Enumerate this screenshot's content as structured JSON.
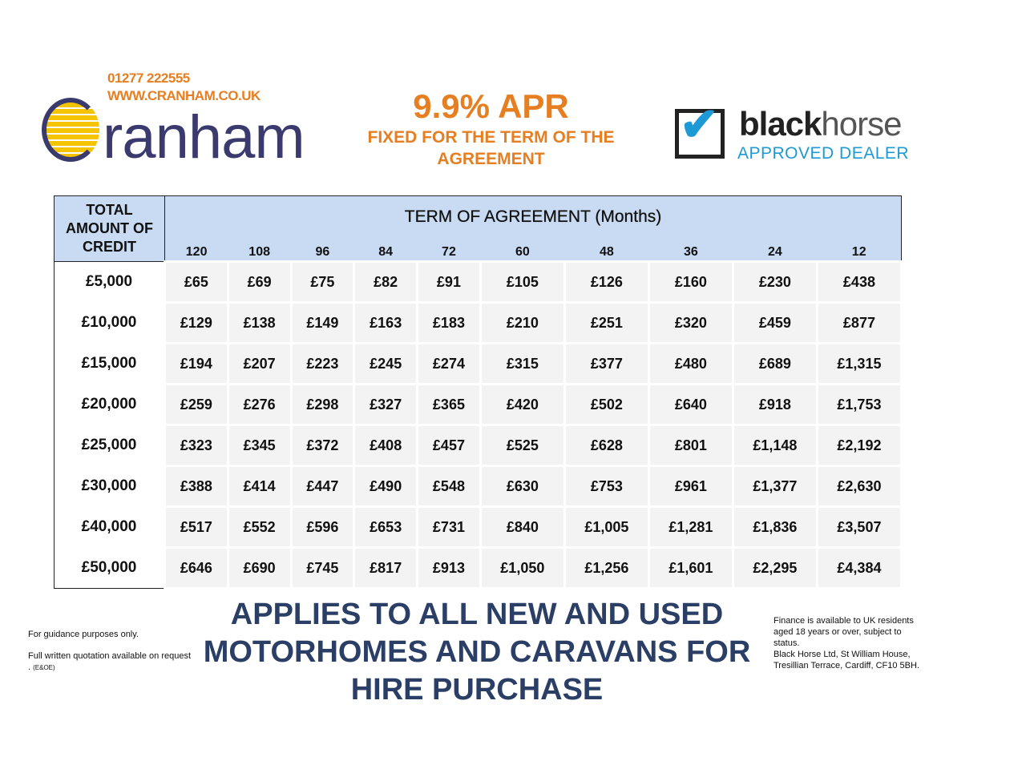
{
  "contact": {
    "phone": "01277 222555",
    "website": "WWW.CRANHAM.CO.UK"
  },
  "logo": {
    "brand": "Cranham",
    "brand_tail": "ranham"
  },
  "offer": {
    "apr": "9.9% APR",
    "subtitle": "FIXED FOR THE TERM OF THE AGREEMENT"
  },
  "dealer": {
    "name_bold": "black",
    "name_light": "horse",
    "tagline": "APPROVED DEALER"
  },
  "table": {
    "corner_header": "TOTAL AMOUNT OF CREDIT",
    "term_header": "TERM OF AGREEMENT (Months)",
    "months": [
      "120",
      "108",
      "96",
      "84",
      "72",
      "60",
      "48",
      "36",
      "24",
      "12"
    ],
    "rows": [
      {
        "amount": "£5,000",
        "payments": [
          "£65",
          "£69",
          "£75",
          "£82",
          "£91",
          "£105",
          "£126",
          "£160",
          "£230",
          "£438"
        ]
      },
      {
        "amount": "£10,000",
        "payments": [
          "£129",
          "£138",
          "£149",
          "£163",
          "£183",
          "£210",
          "£251",
          "£320",
          "£459",
          "£877"
        ]
      },
      {
        "amount": "£15,000",
        "payments": [
          "£194",
          "£207",
          "£223",
          "£245",
          "£274",
          "£315",
          "£377",
          "£480",
          "£689",
          "£1,315"
        ]
      },
      {
        "amount": "£20,000",
        "payments": [
          "£259",
          "£276",
          "£298",
          "£327",
          "£365",
          "£420",
          "£502",
          "£640",
          "£918",
          "£1,753"
        ]
      },
      {
        "amount": "£25,000",
        "payments": [
          "£323",
          "£345",
          "£372",
          "£408",
          "£457",
          "£525",
          "£628",
          "£801",
          "£1,148",
          "£2,192"
        ]
      },
      {
        "amount": "£30,000",
        "payments": [
          "£388",
          "£414",
          "£447",
          "£490",
          "£548",
          "£630",
          "£753",
          "£961",
          "£1,377",
          "£2,630"
        ]
      },
      {
        "amount": "£40,000",
        "payments": [
          "£517",
          "£552",
          "£596",
          "£653",
          "£731",
          "£840",
          "£1,005",
          "£1,281",
          "£1,836",
          "£3,507"
        ]
      },
      {
        "amount": "£50,000",
        "payments": [
          "£646",
          "£690",
          "£745",
          "£817",
          "£913",
          "£1,050",
          "£1,256",
          "£1,601",
          "£2,295",
          "£4,384"
        ]
      }
    ]
  },
  "footer": {
    "guidance": "For guidance purposes only.",
    "quotation": "Full written quotation available on request .",
    "eoe": "(E&OE)",
    "applies": "APPLIES TO ALL NEW AND USED MOTORHOMES AND CARAVANS FOR HIRE PURCHASE",
    "finance_note": "Finance is available to UK residents aged 18 years or over, subject to status.",
    "address": "Black Horse Ltd, St William House, Tresillian Terrace, Cardiff, CF10 5BH."
  }
}
